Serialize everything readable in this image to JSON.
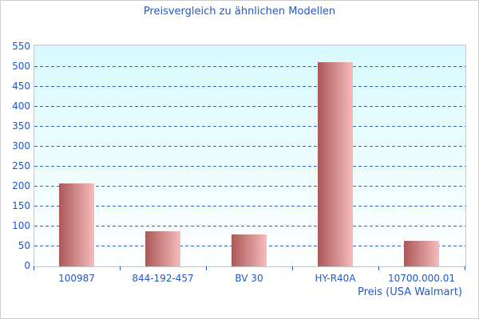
{
  "window": {
    "background": "#ffffff",
    "border_color": "#cccccc"
  },
  "chart_data": {
    "type": "bar",
    "title": "Preisvergleich zu ähnlichen Modellen",
    "categories": [
      "100987",
      "844-192-457",
      "BV 30",
      "HY-R40A",
      "10700.000.01"
    ],
    "values": [
      208,
      87,
      80,
      511,
      64
    ],
    "xlabel": "Preis (USA Walmart)",
    "ylabel": "",
    "ylim": [
      0,
      550
    ],
    "yticks": [
      0,
      50,
      100,
      150,
      200,
      250,
      300,
      350,
      400,
      450,
      500,
      550
    ],
    "grid": "horizontal-dashed",
    "legend": "none",
    "colors": {
      "text": "#2158c8",
      "gridline": "#3465c6",
      "tick": "#2158c8",
      "plot_border": "#c2c7cc",
      "plot_bg_top": "#d7fafd",
      "plot_bg_bottom": "#ffffff",
      "bar_gradient_left": "#aa5858",
      "bar_gradient_right": "#f7bbbb"
    }
  }
}
